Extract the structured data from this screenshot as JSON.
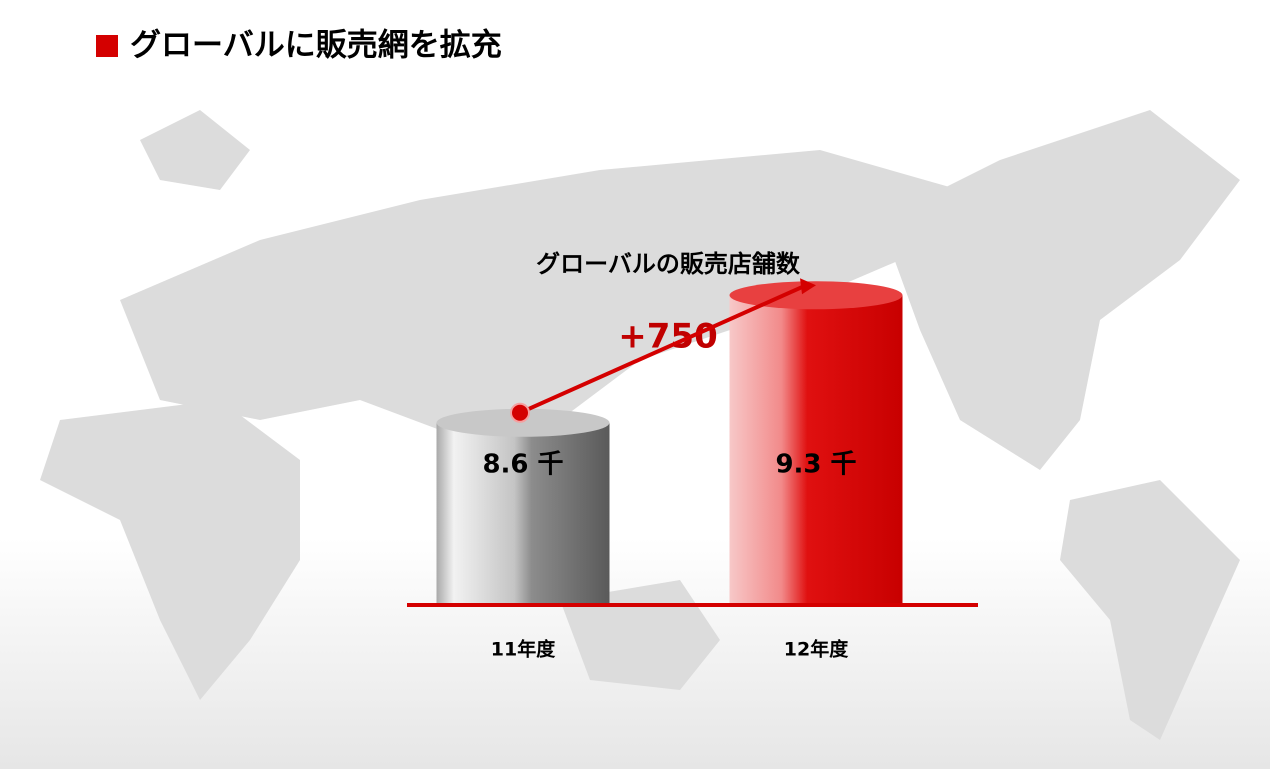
{
  "heading": "グローバルに販売網を拡充",
  "chart_data": {
    "type": "bar",
    "title": "グローバルの販売店舗数",
    "annotation": "+750",
    "categories": [
      "11年度",
      "12年度"
    ],
    "values": [
      8.6,
      9.3
    ],
    "value_labels": [
      "8.6 千",
      "9.3 千"
    ],
    "colors": [
      "#8a8a8a",
      "#d40000"
    ],
    "annotation_color": "#c00000",
    "ylim": [
      7.6,
      9.4
    ]
  }
}
